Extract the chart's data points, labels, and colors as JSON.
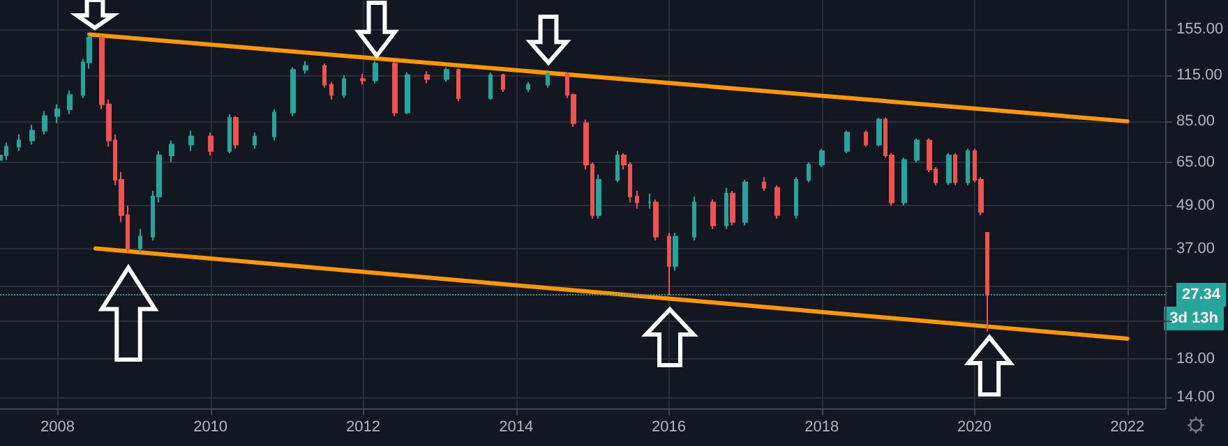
{
  "chart_data": {
    "type": "candlestick",
    "x": [
      "2007-04",
      "2007-05",
      "2007-07",
      "2007-09",
      "2007-11",
      "2008-01",
      "2008-03",
      "2008-05",
      "2008-06",
      "2008-08",
      "2008-09",
      "2008-10",
      "2008-11",
      "2008-12",
      "2009-02",
      "2009-04",
      "2009-05",
      "2009-07",
      "2009-10",
      "2010-01",
      "2010-04",
      "2010-05",
      "2010-08",
      "2010-11",
      "2011-02",
      "2011-04",
      "2011-07",
      "2011-08",
      "2011-10",
      "2012-01",
      "2012-03",
      "2012-06",
      "2012-08",
      "2012-11",
      "2013-02",
      "2013-04",
      "2013-09",
      "2013-11",
      "2014-03",
      "2014-06",
      "2014-09",
      "2014-10",
      "2014-12",
      "2015-01",
      "2015-02",
      "2015-05",
      "2015-06",
      "2015-07",
      "2015-08",
      "2015-10",
      "2015-11",
      "2016-01",
      "2016-02",
      "2016-05",
      "2016-08",
      "2016-10",
      "2016-11",
      "2017-01",
      "2017-04",
      "2017-06",
      "2017-09",
      "2017-11",
      "2018-01",
      "2018-05",
      "2018-08",
      "2018-10",
      "2018-11",
      "2018-12",
      "2019-02",
      "2019-04",
      "2019-06",
      "2019-07",
      "2019-09",
      "2019-10",
      "2019-12",
      "2020-01",
      "2020-02",
      "2020-03"
    ],
    "ohlc": [
      [
        66,
        70,
        64,
        68
      ],
      [
        68,
        74,
        66,
        72
      ],
      [
        72,
        78,
        70,
        75
      ],
      [
        75,
        83,
        73,
        80
      ],
      [
        80,
        91,
        78,
        88
      ],
      [
        88,
        95,
        84,
        92
      ],
      [
        92,
        104,
        89,
        101
      ],
      [
        101,
        128,
        99,
        125
      ],
      [
        125,
        150,
        120,
        147
      ],
      [
        147,
        149,
        92,
        95
      ],
      [
        95,
        98,
        72,
        75
      ],
      [
        75,
        78,
        56,
        58
      ],
      [
        58,
        61,
        44,
        46
      ],
      [
        46,
        49,
        36,
        37
      ],
      [
        37,
        42,
        36,
        40
      ],
      [
        40,
        54,
        39,
        52
      ],
      [
        52,
        70,
        50,
        68
      ],
      [
        68,
        75,
        65,
        73
      ],
      [
        73,
        80,
        70,
        77
      ],
      [
        77,
        79,
        68,
        70
      ],
      [
        70,
        89,
        69,
        87
      ],
      [
        87,
        88,
        71,
        73
      ],
      [
        73,
        79,
        71,
        77
      ],
      [
        77,
        92,
        75,
        90
      ],
      [
        90,
        121,
        88,
        119
      ],
      [
        119,
        126,
        116,
        122
      ],
      [
        122,
        124,
        106,
        108
      ],
      [
        108,
        110,
        98,
        101
      ],
      [
        101,
        115,
        99,
        112
      ],
      [
        112,
        116,
        108,
        111
      ],
      [
        111,
        126,
        109,
        124
      ],
      [
        124,
        125,
        88,
        90
      ],
      [
        90,
        117,
        89,
        115
      ],
      [
        115,
        118,
        109,
        112
      ],
      [
        112,
        121,
        110,
        119
      ],
      [
        119,
        120,
        97,
        99
      ],
      [
        99,
        117,
        98,
        115
      ],
      [
        115,
        116,
        103,
        105
      ],
      [
        105,
        110,
        103,
        108
      ],
      [
        108,
        117,
        106,
        116
      ],
      [
        116,
        117,
        99,
        101
      ],
      [
        101,
        102,
        82,
        84
      ],
      [
        84,
        86,
        62,
        64
      ],
      [
        64,
        65,
        45,
        46
      ],
      [
        46,
        60,
        45,
        58
      ],
      [
        58,
        70,
        57,
        68
      ],
      [
        68,
        69,
        62,
        64
      ],
      [
        64,
        65,
        50,
        52
      ],
      [
        52,
        54,
        48,
        50
      ],
      [
        50,
        53,
        48,
        50
      ],
      [
        50,
        51,
        39,
        40
      ],
      [
        40,
        41,
        27.3,
        33
      ],
      [
        33,
        41,
        32,
        40
      ],
      [
        40,
        52,
        39,
        50
      ],
      [
        50,
        51,
        42,
        43
      ],
      [
        43,
        55,
        42,
        53
      ],
      [
        53,
        54,
        43,
        44
      ],
      [
        44,
        58,
        43,
        57
      ],
      [
        57,
        59,
        54,
        55
      ],
      [
        55,
        56,
        45,
        46
      ],
      [
        46,
        59,
        45,
        58
      ],
      [
        58,
        65,
        57,
        64
      ],
      [
        64,
        71,
        63,
        70
      ],
      [
        70,
        80,
        69,
        79
      ],
      [
        79,
        80,
        72,
        73
      ],
      [
        73,
        87,
        72,
        86
      ],
      [
        86,
        87,
        67,
        68
      ],
      [
        68,
        69,
        49,
        50
      ],
      [
        50,
        67,
        49,
        66
      ],
      [
        66,
        76,
        65,
        75
      ],
      [
        75,
        76,
        61,
        62
      ],
      [
        62,
        63,
        56,
        57
      ],
      [
        57,
        69,
        56,
        68
      ],
      [
        68,
        69,
        56,
        57
      ],
      [
        57,
        71,
        56,
        70
      ],
      [
        70,
        71,
        57,
        58
      ],
      [
        58,
        59,
        46,
        47
      ],
      [
        41,
        41,
        21.5,
        27.34
      ]
    ],
    "series": [
      {
        "type": "line",
        "color": "#ff9800",
        "x": [
          "2008-06",
          "2022-01"
        ],
        "values": [
          150,
          85
        ]
      },
      {
        "type": "line",
        "color": "#ff9800",
        "x": [
          "2008-07",
          "2022-01"
        ],
        "values": [
          37,
          20.5
        ]
      }
    ],
    "xlim": [
      "2007-04",
      "2022-07"
    ],
    "xticks": [
      {
        "value": "2008",
        "label": "2008"
      },
      {
        "value": "2010",
        "label": "2010"
      },
      {
        "value": "2012",
        "label": "2012"
      },
      {
        "value": "2014",
        "label": "2014"
      },
      {
        "value": "2016",
        "label": "2016"
      },
      {
        "value": "2018",
        "label": "2018"
      },
      {
        "value": "2020",
        "label": "2020"
      },
      {
        "value": "2022",
        "label": "2022"
      }
    ],
    "ylim": [
      13,
      188
    ],
    "yticks": [
      {
        "value": 14,
        "label": "14.00"
      },
      {
        "value": 18,
        "label": "18.00"
      },
      {
        "value": 23,
        "label": null
      },
      {
        "value": 29,
        "label": null
      },
      {
        "value": 37,
        "label": "37.00"
      },
      {
        "value": 49,
        "label": "49.00"
      },
      {
        "value": 65,
        "label": "65.00"
      },
      {
        "value": 85,
        "label": "85.00"
      },
      {
        "value": 115,
        "label": "115.00"
      },
      {
        "value": 155,
        "label": "155.00"
      }
    ],
    "log": true,
    "grid": true,
    "ref_lines": [
      {
        "axis": "y",
        "value": 27.34,
        "label": "27.34",
        "color": "#26a69a",
        "line_style": "dotted"
      }
    ],
    "annotations": [
      "3d 13h"
    ]
  }
}
